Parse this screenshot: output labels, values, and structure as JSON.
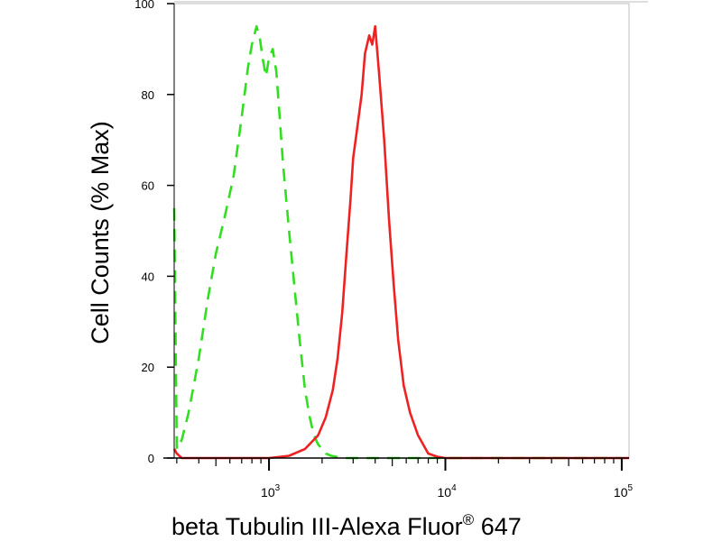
{
  "chart_data": {
    "type": "line",
    "title": "",
    "xlabel": "beta Tubulin III-Alexa Fluor",
    "xlabel_superscript": "®",
    "xlabel_suffix": " 647",
    "ylabel": "Cell Counts (% Max)",
    "x_scale": "log",
    "xlim": [
      290,
      110000
    ],
    "ylim": [
      0,
      100
    ],
    "yticks": [
      0,
      20,
      40,
      60,
      80,
      100
    ],
    "xticks": [
      {
        "value": 1000,
        "base": "10",
        "exp": "3"
      },
      {
        "value": 10000,
        "base": "10",
        "exp": "4"
      },
      {
        "value": 100000,
        "base": "10",
        "exp": "5"
      }
    ],
    "grid": false,
    "series": [
      {
        "color": "#33dd22",
        "style": "dashed",
        "x": [
          290,
          300,
          320,
          350,
          400,
          450,
          500,
          560,
          630,
          700,
          760,
          800,
          850,
          890,
          920,
          960,
          1000,
          1050,
          1100,
          1150,
          1200,
          1300,
          1400,
          1500,
          1600,
          1700,
          1800,
          1900,
          2000,
          2100,
          2250,
          2400,
          2600,
          3000,
          5000,
          10000,
          100000
        ],
        "y": [
          55,
          2,
          4,
          10,
          22,
          35,
          45,
          53,
          62,
          75,
          86,
          91,
          95,
          92,
          88,
          84,
          88,
          90,
          85,
          75,
          65,
          50,
          37,
          25,
          15,
          9,
          5,
          3,
          2,
          1,
          0.5,
          0.3,
          0,
          0,
          0,
          0,
          0
        ]
      },
      {
        "color": "#ee2222",
        "style": "solid",
        "x": [
          290,
          300,
          320,
          350,
          600,
          1000,
          1300,
          1600,
          1900,
          2100,
          2300,
          2450,
          2600,
          2750,
          2900,
          3000,
          3150,
          3350,
          3500,
          3700,
          3850,
          4000,
          4200,
          4500,
          4800,
          5100,
          5400,
          5800,
          6300,
          7000,
          8000,
          9000,
          10000,
          100000,
          110000
        ],
        "y": [
          2,
          1,
          0,
          0,
          0,
          0,
          0.5,
          2,
          5,
          9,
          15,
          22,
          32,
          45,
          57,
          66,
          72,
          80,
          89,
          93,
          91,
          95,
          85,
          70,
          52,
          38,
          26,
          16,
          10,
          5,
          1,
          0.3,
          0,
          0,
          0
        ]
      }
    ]
  }
}
